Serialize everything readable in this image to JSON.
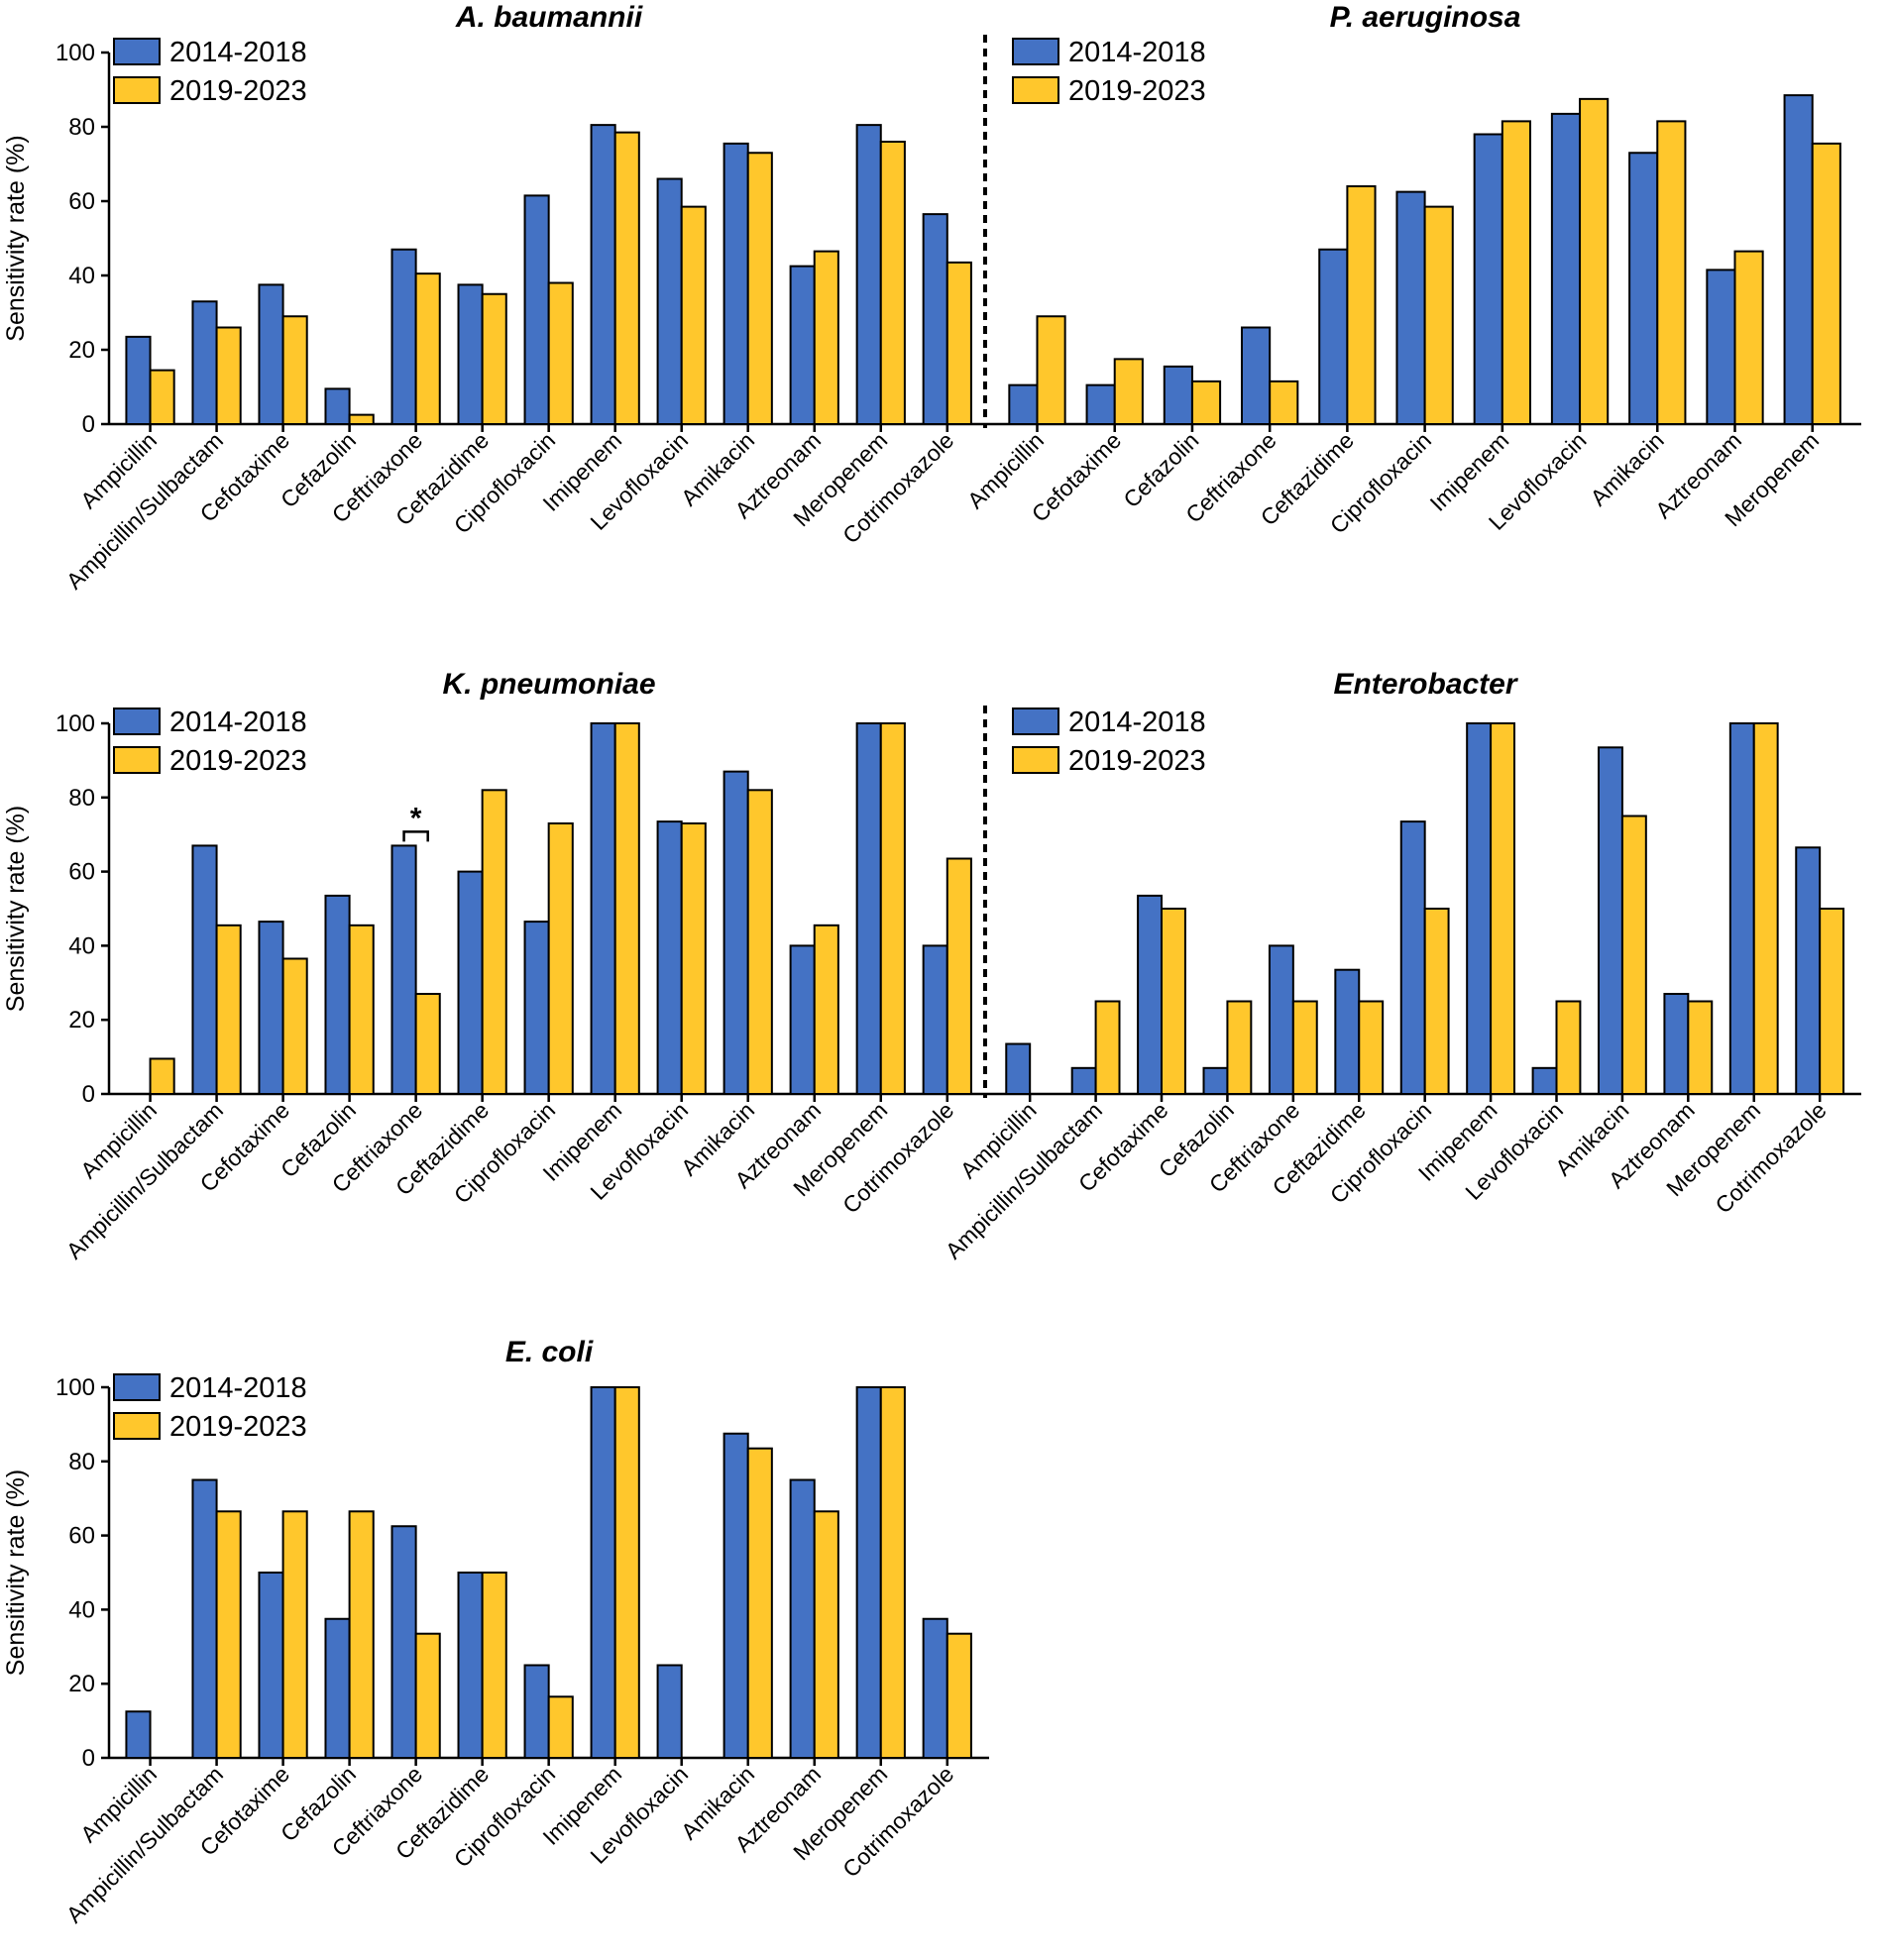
{
  "legend": [
    "2014-2018",
    "2019-2023"
  ],
  "colors": {
    "series_1": "#4472C4",
    "series_2": "#FFC72C",
    "axis": "#000000"
  },
  "chart_data": [
    {
      "type": "bar",
      "title": "A. baumannii",
      "ylabel": "Sensitivity rate (%)",
      "xlabel": "",
      "ylim": [
        0,
        100
      ],
      "yticks": [
        0,
        20,
        40,
        60,
        80,
        100
      ],
      "categories": [
        "Ampicillin",
        "Ampicillin/Sulbactam",
        "Cefotaxime",
        "Cefazolin",
        "Ceftriaxone",
        "Ceftazidime",
        "Ciprofloxacin",
        "Imipenem",
        "Levofloxacin",
        "Amikacin",
        "Aztreonam",
        "Meropenem",
        "Cotrimoxazole"
      ],
      "series": [
        {
          "name": "2014-2018",
          "values": [
            23.5,
            33,
            37.5,
            9.5,
            47,
            37.5,
            61.5,
            80.5,
            66,
            75.5,
            42.5,
            80.5,
            56.5
          ]
        },
        {
          "name": "2019-2023",
          "values": [
            14.5,
            26,
            29,
            2.5,
            40.5,
            35,
            38,
            78.5,
            58.5,
            73,
            46.5,
            76,
            43.5
          ]
        }
      ],
      "annotations": []
    },
    {
      "type": "bar",
      "title": "P. aeruginosa",
      "ylabel": "",
      "xlabel": "",
      "ylim": [
        0,
        100
      ],
      "yticks": [],
      "categories": [
        "Ampicillin",
        "Cefotaxime",
        "Cefazolin",
        "Ceftriaxone",
        "Ceftazidime",
        "Ciprofloxacin",
        "Imipenem",
        "Levofloxacin",
        "Amikacin",
        "Aztreonam",
        "Meropenem"
      ],
      "series": [
        {
          "name": "2014-2018",
          "values": [
            10.5,
            10.5,
            15.5,
            26,
            47,
            62.5,
            78,
            83.5,
            73,
            41.5,
            88.5
          ]
        },
        {
          "name": "2019-2023",
          "values": [
            29,
            17.5,
            11.5,
            11.5,
            64,
            58.5,
            81.5,
            87.5,
            81.5,
            46.5,
            75.5
          ]
        }
      ],
      "annotations": []
    },
    {
      "type": "bar",
      "title": "K. pneumoniae",
      "ylabel": "Sensitivity rate (%)",
      "xlabel": "",
      "ylim": [
        0,
        100
      ],
      "yticks": [
        0,
        20,
        40,
        60,
        80,
        100
      ],
      "categories": [
        "Ampicillin",
        "Ampicillin/Sulbactam",
        "Cefotaxime",
        "Cefazolin",
        "Ceftriaxone",
        "Ceftazidime",
        "Ciprofloxacin",
        "Imipenem",
        "Levofloxacin",
        "Amikacin",
        "Aztreonam",
        "Meropenem",
        "Cotrimoxazole"
      ],
      "series": [
        {
          "name": "2014-2018",
          "values": [
            0,
            67,
            46.5,
            53.5,
            67,
            60,
            46.5,
            100,
            73.5,
            87,
            40,
            100,
            40
          ]
        },
        {
          "name": "2019-2023",
          "values": [
            9.5,
            45.5,
            36.5,
            45.5,
            27,
            82,
            73,
            100,
            73,
            82,
            45.5,
            100,
            63.5
          ]
        }
      ],
      "annotations": [
        {
          "text": "*",
          "category": "Ceftriaxone"
        }
      ]
    },
    {
      "type": "bar",
      "title": "Enterobacter",
      "ylabel": "",
      "xlabel": "",
      "ylim": [
        0,
        100
      ],
      "yticks": [],
      "categories": [
        "Ampicillin",
        "Ampicillin/Sulbactam",
        "Cefotaxime",
        "Cefazolin",
        "Ceftriaxone",
        "Ceftazidime",
        "Ciprofloxacin",
        "Imipenem",
        "Levofloxacin",
        "Amikacin",
        "Aztreonam",
        "Meropenem",
        "Cotrimoxazole"
      ],
      "series": [
        {
          "name": "2014-2018",
          "values": [
            13.5,
            7,
            53.5,
            7,
            40,
            33.5,
            73.5,
            100,
            7,
            93.5,
            27,
            100,
            66.5
          ]
        },
        {
          "name": "2019-2023",
          "values": [
            0,
            25,
            50,
            25,
            25,
            25,
            50,
            100,
            25,
            75,
            25,
            100,
            50
          ]
        }
      ],
      "annotations": []
    },
    {
      "type": "bar",
      "title": "E. coli",
      "ylabel": "Sensitivity rate (%)",
      "xlabel": "",
      "ylim": [
        0,
        100
      ],
      "yticks": [
        0,
        20,
        40,
        60,
        80,
        100
      ],
      "categories": [
        "Ampicillin",
        "Ampicillin/Sulbactam",
        "Cefotaxime",
        "Cefazolin",
        "Ceftriaxone",
        "Ceftazidime",
        "Ciprofloxacin",
        "Imipenem",
        "Levofloxacin",
        "Amikacin",
        "Aztreonam",
        "Meropenem",
        "Cotrimoxazole"
      ],
      "series": [
        {
          "name": "2014-2018",
          "values": [
            12.5,
            75,
            50,
            37.5,
            62.5,
            50,
            25,
            100,
            25,
            87.5,
            75,
            100,
            37.5
          ]
        },
        {
          "name": "2019-2023",
          "values": [
            0,
            66.5,
            66.5,
            66.5,
            33.5,
            50,
            16.5,
            100,
            0,
            83.5,
            66.5,
            100,
            33.5
          ]
        }
      ],
      "annotations": []
    }
  ]
}
